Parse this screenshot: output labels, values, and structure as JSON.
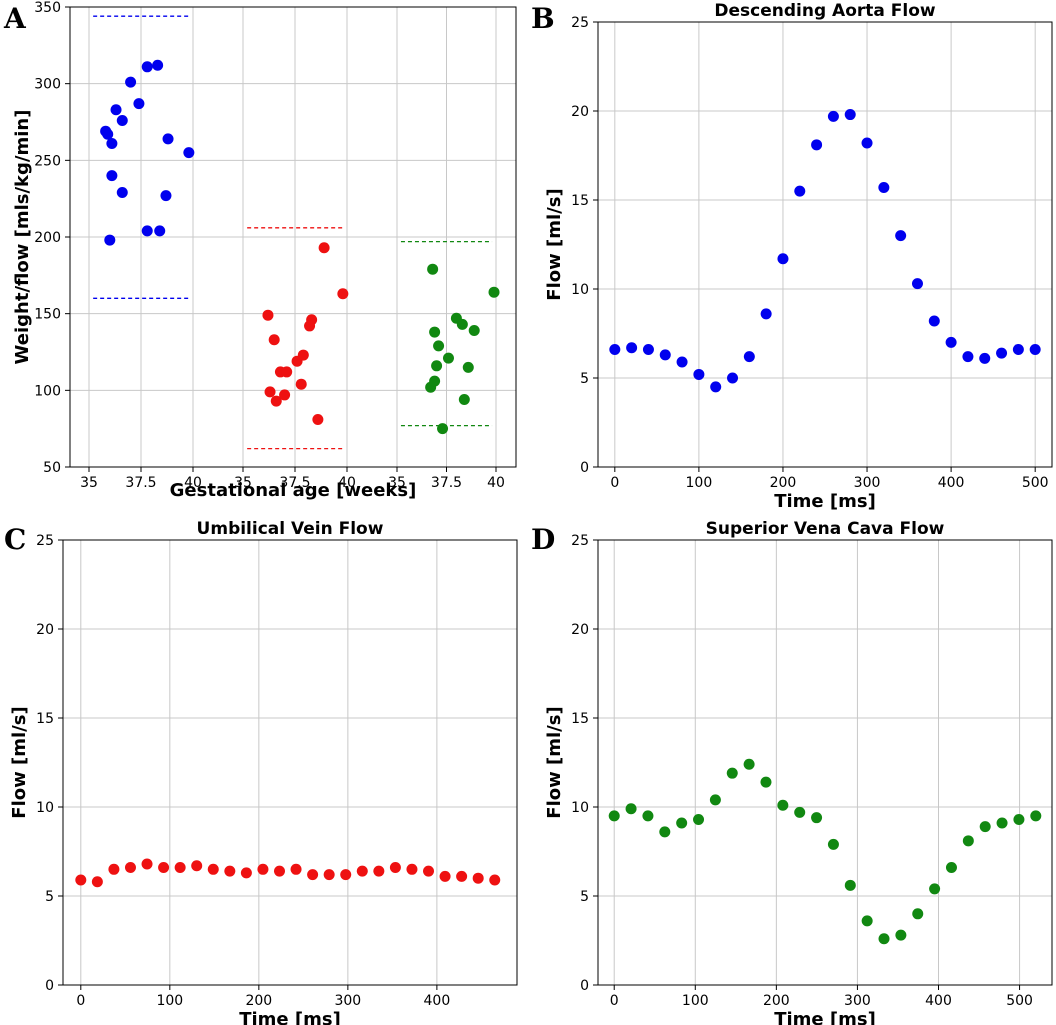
{
  "chart_data": [
    {
      "panel": "A",
      "type": "scatter",
      "title": "",
      "xlabel": "Gestational age [weeks]",
      "ylabel": "Weight/flow [mls/kg/min]",
      "ylim": [
        50,
        350
      ],
      "yticks": [
        50,
        100,
        150,
        200,
        250,
        300,
        350
      ],
      "xtick_labels": [
        "35",
        "37.5",
        "40"
      ],
      "groups": [
        {
          "name": "Descending aorta",
          "color": "#0000ee",
          "xlim": [
            35,
            40
          ],
          "ref_lines": [
            344,
            160
          ],
          "x": [
            35.8,
            35.9,
            36.3,
            36.1,
            36.6,
            36.1,
            36.6,
            36.0,
            37.0,
            37.4,
            37.8,
            38.3,
            38.4,
            37.8,
            38.8,
            38.7,
            39.8
          ],
          "y": [
            269,
            267,
            283,
            261,
            276,
            240,
            229,
            198,
            301,
            287,
            311,
            312,
            204,
            204,
            264,
            227,
            255
          ]
        },
        {
          "name": "Umbilical vein",
          "color": "#ee1111",
          "xlim": [
            35,
            40
          ],
          "ref_lines": [
            206,
            62
          ],
          "x": [
            36.2,
            36.3,
            36.6,
            36.8,
            36.5,
            37.1,
            37.0,
            37.6,
            37.9,
            37.8,
            38.3,
            38.2,
            38.6,
            38.9,
            39.8
          ],
          "y": [
            149,
            99,
            93,
            112,
            133,
            112,
            97,
            119,
            123,
            104,
            146,
            142,
            81,
            193,
            163
          ]
        },
        {
          "name": "Superior vena cava",
          "color": "#118811",
          "xlim": [
            35,
            40
          ],
          "ref_lines": [
            197,
            77
          ],
          "x": [
            36.8,
            36.9,
            37.1,
            37.0,
            36.7,
            36.9,
            37.3,
            37.6,
            38.0,
            38.3,
            38.4,
            38.6,
            38.9,
            39.9
          ],
          "y": [
            179,
            138,
            129,
            116,
            102,
            106,
            75,
            121,
            147,
            143,
            94,
            115,
            139,
            164
          ]
        }
      ]
    },
    {
      "panel": "B",
      "type": "scatter",
      "title": "Descending Aorta Flow",
      "xlabel": "Time [ms]",
      "ylabel": "Flow [ml/s]",
      "color": "#0000ee",
      "xlim": [
        -20,
        520
      ],
      "ylim": [
        0,
        25
      ],
      "xticks": [
        0,
        100,
        200,
        300,
        400,
        500
      ],
      "yticks": [
        0,
        5,
        10,
        15,
        20,
        25
      ],
      "x": [
        0,
        20,
        40,
        60,
        80,
        100,
        120,
        140,
        160,
        180,
        200,
        220,
        240,
        260,
        280,
        300,
        320,
        340,
        360,
        380,
        400,
        420,
        440,
        460,
        480,
        500
      ],
      "y": [
        6.6,
        6.7,
        6.6,
        6.3,
        5.9,
        5.2,
        4.5,
        5.0,
        6.2,
        8.6,
        11.7,
        15.5,
        18.1,
        19.7,
        19.8,
        18.2,
        15.7,
        13.0,
        10.3,
        8.2,
        7.0,
        6.2,
        6.1,
        6.4,
        6.6,
        6.6
      ]
    },
    {
      "panel": "C",
      "type": "scatter",
      "title": "Umbilical Vein Flow",
      "xlabel": "Time [ms]",
      "ylabel": "Flow [ml/s]",
      "color": "#ee1111",
      "xlim": [
        -20,
        490
      ],
      "ylim": [
        0,
        25
      ],
      "xticks": [
        0,
        100,
        200,
        300,
        400
      ],
      "yticks": [
        0,
        5,
        10,
        15,
        20,
        25
      ],
      "x": [
        0,
        18.6,
        37.2,
        55.8,
        74.4,
        93.0,
        111.6,
        130.2,
        148.8,
        167.4,
        186.0,
        204.6,
        223.2,
        241.8,
        260.4,
        279.0,
        297.6,
        316.2,
        334.8,
        353.4,
        372.0,
        390.6,
        409.2,
        427.8,
        446.4,
        465.0
      ],
      "y": [
        5.9,
        5.8,
        6.5,
        6.6,
        6.8,
        6.6,
        6.6,
        6.7,
        6.5,
        6.4,
        6.3,
        6.5,
        6.4,
        6.5,
        6.2,
        6.2,
        6.2,
        6.4,
        6.4,
        6.6,
        6.5,
        6.4,
        6.1,
        6.1,
        6.0,
        5.9
      ]
    },
    {
      "panel": "D",
      "type": "scatter",
      "title": "Superior Vena Cava Flow",
      "xlabel": "Time [ms]",
      "ylabel": "Flow [ml/s]",
      "color": "#118811",
      "xlim": [
        -20,
        540
      ],
      "ylim": [
        0,
        25
      ],
      "xticks": [
        0,
        100,
        200,
        300,
        400,
        500
      ],
      "yticks": [
        0,
        5,
        10,
        15,
        20,
        25
      ],
      "x": [
        0,
        20.8,
        41.6,
        62.4,
        83.2,
        104.0,
        124.8,
        145.6,
        166.4,
        187.2,
        208.0,
        228.8,
        249.6,
        270.4,
        291.2,
        312.0,
        332.8,
        353.6,
        374.4,
        395.2,
        416.0,
        436.8,
        457.6,
        478.4,
        499.2,
        520.0
      ],
      "y": [
        9.5,
        9.9,
        9.5,
        8.6,
        9.1,
        9.3,
        10.4,
        11.9,
        12.4,
        11.4,
        10.1,
        9.7,
        9.4,
        7.9,
        5.6,
        3.6,
        2.6,
        2.8,
        4.0,
        5.4,
        6.6,
        8.1,
        8.9,
        9.1,
        9.3,
        9.5
      ]
    }
  ]
}
